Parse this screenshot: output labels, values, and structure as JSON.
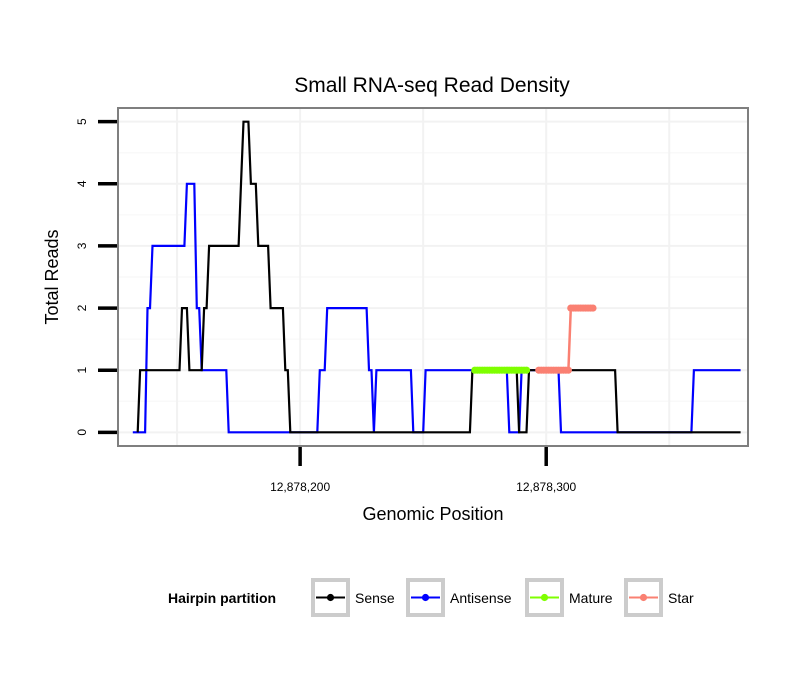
{
  "chart_data": {
    "type": "line",
    "title": "Small RNA-seq Read Density",
    "xlabel": "Genomic Position",
    "ylabel": "Total Reads",
    "xlim": [
      12878126,
      12878382
    ],
    "ylim": [
      -0.22,
      5.22
    ],
    "x_ticks": [
      {
        "value": 12878200,
        "label": "12,878,200"
      },
      {
        "value": 12878300,
        "label": "12,878,300"
      }
    ],
    "y_ticks": [
      {
        "value": 0,
        "label": "0"
      },
      {
        "value": 1,
        "label": "1"
      },
      {
        "value": 2,
        "label": "2"
      },
      {
        "value": 3,
        "label": "3"
      },
      {
        "value": 4,
        "label": "4"
      },
      {
        "value": 5,
        "label": "5"
      }
    ],
    "grid": true,
    "legend": {
      "title": "Hairpin partition",
      "position": "bottom",
      "entries": [
        {
          "name": "Sense",
          "color": "#000000"
        },
        {
          "name": "Antisense",
          "color": "#0000ff"
        },
        {
          "name": "Mature",
          "color": "#7fff00"
        },
        {
          "name": "Star",
          "color": "#fa8072"
        }
      ]
    },
    "series": [
      {
        "name": "Antisense",
        "color": "#0000ff",
        "points": [
          [
            12878132,
            0
          ],
          [
            12878137,
            0
          ],
          [
            12878138,
            2
          ],
          [
            12878139,
            2
          ],
          [
            12878140,
            3
          ],
          [
            12878153,
            3
          ],
          [
            12878154,
            4
          ],
          [
            12878157,
            4
          ],
          [
            12878158,
            2
          ],
          [
            12878159,
            2
          ],
          [
            12878160,
            1
          ],
          [
            12878170,
            1
          ],
          [
            12878171,
            0
          ],
          [
            12878190,
            0
          ],
          [
            12878207,
            0
          ],
          [
            12878208,
            1
          ],
          [
            12878210,
            1
          ],
          [
            12878211,
            2
          ],
          [
            12878227,
            2
          ],
          [
            12878228,
            1
          ],
          [
            12878229,
            1
          ],
          [
            12878230,
            0
          ],
          [
            12878231,
            1
          ],
          [
            12878245,
            1
          ],
          [
            12878246,
            0
          ],
          [
            12878250,
            0
          ],
          [
            12878251,
            1
          ],
          [
            12878284,
            1
          ],
          [
            12878285,
            0
          ],
          [
            12878289,
            0
          ],
          [
            12878290,
            1
          ],
          [
            12878305,
            1
          ],
          [
            12878306,
            0
          ],
          [
            12878359,
            0
          ],
          [
            12878360,
            1
          ],
          [
            12878379,
            1
          ]
        ]
      },
      {
        "name": "Sense",
        "color": "#000000",
        "points": [
          [
            12878134,
            0
          ],
          [
            12878135,
            1
          ],
          [
            12878151,
            1
          ],
          [
            12878152,
            2
          ],
          [
            12878154,
            2
          ],
          [
            12878155,
            1
          ],
          [
            12878160,
            1
          ],
          [
            12878161,
            2
          ],
          [
            12878162,
            2
          ],
          [
            12878163,
            3
          ],
          [
            12878175,
            3
          ],
          [
            12878176,
            4
          ],
          [
            12878177,
            5
          ],
          [
            12878179,
            5
          ],
          [
            12878180,
            4
          ],
          [
            12878182,
            4
          ],
          [
            12878183,
            3
          ],
          [
            12878187,
            3
          ],
          [
            12878188,
            2
          ],
          [
            12878193,
            2
          ],
          [
            12878194,
            1
          ],
          [
            12878195,
            1
          ],
          [
            12878196,
            0
          ],
          [
            12878240,
            0
          ],
          [
            12878269,
            0
          ],
          [
            12878270,
            1
          ],
          [
            12878277,
            1
          ],
          [
            12878288,
            1
          ],
          [
            12878289,
            0
          ],
          [
            12878292,
            0
          ],
          [
            12878293,
            1
          ],
          [
            12878314,
            1
          ],
          [
            12878318,
            1
          ],
          [
            12878328,
            1
          ],
          [
            12878329,
            0
          ],
          [
            12878379,
            0
          ]
        ]
      },
      {
        "name": "Mature",
        "color": "#7fff00",
        "points": [
          [
            12878271,
            1
          ],
          [
            12878272,
            1
          ],
          [
            12878273,
            1
          ],
          [
            12878274,
            1
          ],
          [
            12878275,
            1
          ],
          [
            12878276,
            1
          ],
          [
            12878277,
            1
          ],
          [
            12878278,
            1
          ],
          [
            12878279,
            1
          ],
          [
            12878280,
            1
          ],
          [
            12878281,
            1
          ],
          [
            12878282,
            1
          ],
          [
            12878283,
            1
          ],
          [
            12878284,
            1
          ],
          [
            12878285,
            1
          ],
          [
            12878286,
            1
          ],
          [
            12878287,
            1
          ],
          [
            12878288,
            1
          ],
          [
            12878289,
            1
          ],
          [
            12878290,
            1
          ],
          [
            12878291,
            1
          ],
          [
            12878292,
            1
          ]
        ]
      },
      {
        "name": "Star",
        "color": "#fa8072",
        "points": [
          [
            12878297,
            1
          ],
          [
            12878298,
            1
          ],
          [
            12878299,
            1
          ],
          [
            12878300,
            1
          ],
          [
            12878301,
            1
          ],
          [
            12878302,
            1
          ],
          [
            12878303,
            1
          ],
          [
            12878304,
            1
          ],
          [
            12878305,
            1
          ],
          [
            12878306,
            1
          ],
          [
            12878307,
            1
          ],
          [
            12878308,
            1
          ],
          [
            12878309,
            1
          ],
          [
            12878310,
            2
          ],
          [
            12878311,
            2
          ],
          [
            12878312,
            2
          ],
          [
            12878313,
            2
          ],
          [
            12878314,
            2
          ],
          [
            12878315,
            2
          ],
          [
            12878316,
            2
          ],
          [
            12878317,
            2
          ],
          [
            12878318,
            2
          ],
          [
            12878319,
            2
          ]
        ]
      }
    ]
  }
}
